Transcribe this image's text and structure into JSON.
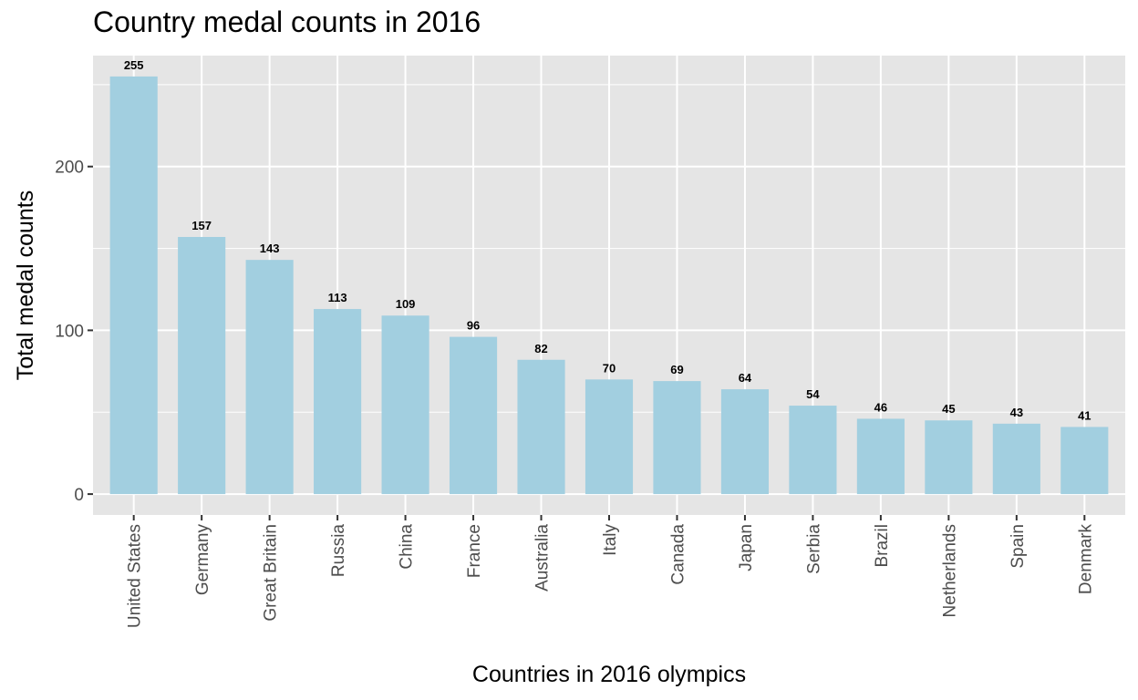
{
  "chart_data": {
    "type": "bar",
    "title": "Country medal counts in 2016",
    "xlabel": "Countries in 2016 olympics",
    "ylabel": "Total medal counts",
    "categories": [
      "United States",
      "Germany",
      "Great Britain",
      "Russia",
      "China",
      "France",
      "Australia",
      "Italy",
      "Canada",
      "Japan",
      "Serbia",
      "Brazil",
      "Netherlands",
      "Spain",
      "Denmark"
    ],
    "values": [
      255,
      157,
      143,
      113,
      109,
      96,
      82,
      70,
      69,
      64,
      54,
      46,
      45,
      43,
      41
    ],
    "ylim": [
      -12.75,
      267.75
    ],
    "yticks": [
      0,
      100,
      200
    ],
    "grid": true,
    "legend": "none",
    "colors": {
      "bar": "#a2cfe0",
      "panel": "#e5e5e5",
      "grid": "#ffffff",
      "tick_text": "#4d4d4d"
    }
  }
}
